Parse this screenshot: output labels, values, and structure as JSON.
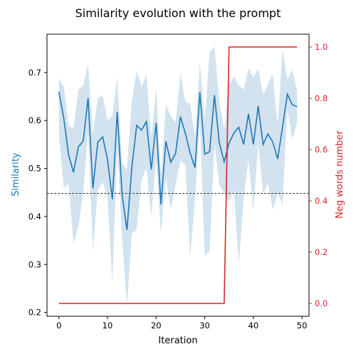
{
  "chart_data": {
    "type": "line",
    "title": "Similarity evolution with the prompt",
    "xlabel": "Iteration",
    "ylabel_left": "Similarity",
    "ylabel_right": "Neg words number",
    "xlim": [
      -2.45,
      51.45
    ],
    "ylim_left": [
      0.192,
      0.78
    ],
    "ylim_right": [
      -0.05,
      1.05
    ],
    "x_ticks": [
      0,
      10,
      20,
      30,
      40,
      50
    ],
    "y_left_ticks": [
      0.2,
      0.3,
      0.4,
      0.5,
      0.6,
      0.7
    ],
    "y_right_ticks": [
      0.0,
      0.2,
      0.4,
      0.6,
      0.8,
      1.0
    ],
    "grid": false,
    "threshold": 0.448,
    "colors": {
      "similarity": "#1f77b4",
      "band": "#a6c8e0",
      "neg_words": "#d62728",
      "threshold": "#000000",
      "axis": "#000000"
    },
    "series": [
      {
        "axis": "left",
        "x": [
          0,
          1,
          2,
          3,
          4,
          5,
          6,
          7,
          8,
          9,
          10,
          11,
          12,
          13,
          14,
          15,
          16,
          17,
          18,
          19,
          20,
          21,
          22,
          23,
          24,
          25,
          26,
          27,
          28,
          29,
          30,
          31,
          32,
          33,
          34,
          35,
          36,
          37,
          38,
          39,
          40,
          41,
          42,
          43,
          44,
          45,
          46,
          47,
          48,
          49
        ],
        "values": [
          0.66,
          0.605,
          0.528,
          0.492,
          0.545,
          0.557,
          0.647,
          0.459,
          0.555,
          0.566,
          0.519,
          0.436,
          0.618,
          0.446,
          0.372,
          0.502,
          0.59,
          0.58,
          0.598,
          0.498,
          0.595,
          0.425,
          0.557,
          0.513,
          0.531,
          0.608,
          0.574,
          0.532,
          0.502,
          0.659,
          0.53,
          0.535,
          0.653,
          0.553,
          0.514,
          0.553,
          0.574,
          0.586,
          0.55,
          0.614,
          0.55,
          0.63,
          0.55,
          0.572,
          0.555,
          0.52,
          0.586,
          0.655,
          0.633,
          0.629
        ],
        "band_upper": [
          0.688,
          0.671,
          0.589,
          0.583,
          0.664,
          0.673,
          0.718,
          0.572,
          0.647,
          0.653,
          0.6,
          0.61,
          0.691,
          0.512,
          0.498,
          0.64,
          0.705,
          0.67,
          0.695,
          0.564,
          0.668,
          0.486,
          0.633,
          0.611,
          0.596,
          0.7,
          0.639,
          0.635,
          0.567,
          0.72,
          0.602,
          0.742,
          0.755,
          0.64,
          0.58,
          0.675,
          0.692,
          0.674,
          0.664,
          0.709,
          0.69,
          0.708,
          0.654,
          0.675,
          0.697,
          0.592,
          0.747,
          0.686,
          0.706,
          0.662
        ],
        "band_lower": [
          0.569,
          0.46,
          0.467,
          0.344,
          0.377,
          0.45,
          0.576,
          0.328,
          0.455,
          0.472,
          0.438,
          0.262,
          0.545,
          0.356,
          0.212,
          0.364,
          0.374,
          0.477,
          0.501,
          0.4,
          0.522,
          0.364,
          0.482,
          0.414,
          0.467,
          0.516,
          0.509,
          0.316,
          0.437,
          0.598,
          0.318,
          0.328,
          0.551,
          0.466,
          0.448,
          0.431,
          0.455,
          0.3,
          0.436,
          0.519,
          0.41,
          0.552,
          0.446,
          0.469,
          0.413,
          0.448,
          0.425,
          0.624,
          0.56,
          0.596
        ]
      },
      {
        "axis": "right",
        "x": [
          0,
          1,
          2,
          3,
          4,
          5,
          6,
          7,
          8,
          9,
          10,
          11,
          12,
          13,
          14,
          15,
          16,
          17,
          18,
          19,
          20,
          21,
          22,
          23,
          24,
          25,
          26,
          27,
          28,
          29,
          30,
          31,
          32,
          33,
          34,
          35,
          36,
          37,
          38,
          39,
          40,
          41,
          42,
          43,
          44,
          45,
          46,
          47,
          48,
          49
        ],
        "values": [
          0,
          0,
          0,
          0,
          0,
          0,
          0,
          0,
          0,
          0,
          0,
          0,
          0,
          0,
          0,
          0,
          0,
          0,
          0,
          0,
          0,
          0,
          0,
          0,
          0,
          0,
          0,
          0,
          0,
          0,
          0,
          0,
          0,
          0,
          0,
          1,
          1,
          1,
          1,
          1,
          1,
          1,
          1,
          1,
          1,
          1,
          1,
          1,
          1,
          1
        ]
      }
    ]
  }
}
